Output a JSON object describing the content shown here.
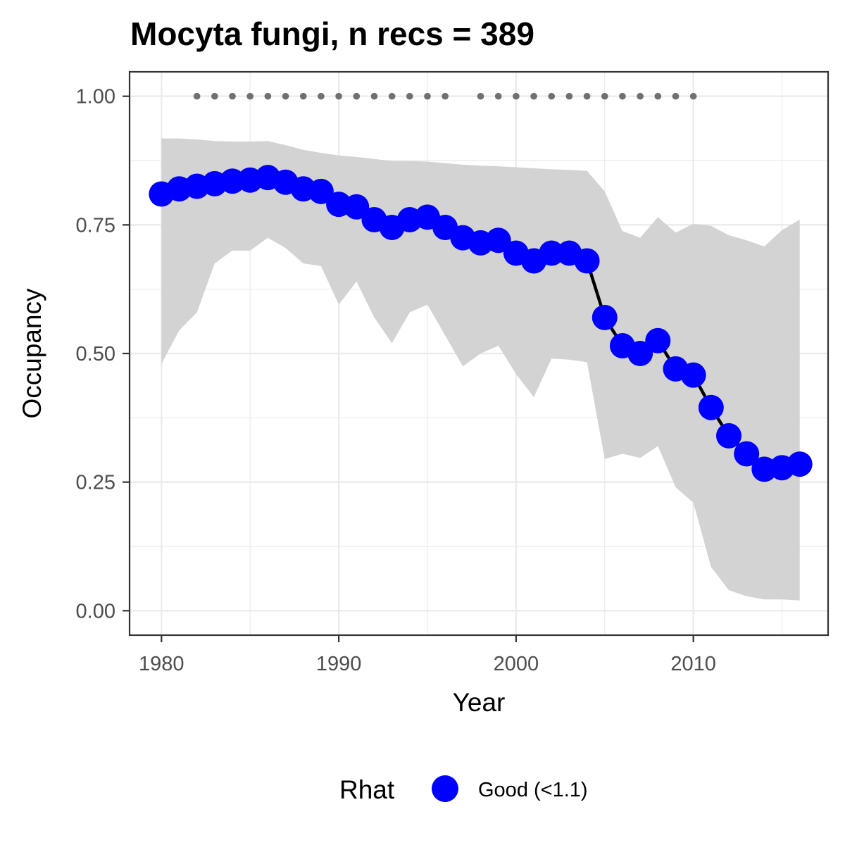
{
  "chart_data": {
    "type": "line",
    "title": "Mocyta fungi, n recs = 389",
    "xlabel": "Year",
    "ylabel": "Occupancy",
    "xlim": [
      1978.2,
      2017.6
    ],
    "ylim": [
      -0.0475,
      1.0475
    ],
    "x_ticks": [
      1980,
      1990,
      2000,
      2010
    ],
    "x_tick_labels": [
      "1980",
      "1990",
      "2000",
      "2010"
    ],
    "y_ticks": [
      0,
      0.25,
      0.5,
      0.75,
      1
    ],
    "y_tick_labels": [
      "0.00",
      "0.25",
      "0.50",
      "0.75",
      "1.00"
    ],
    "grid": true,
    "legend_position": "bottom",
    "legend": {
      "title": "Rhat",
      "label": "Good (<1.1)"
    },
    "colors": {
      "points": "#0000ff",
      "line": "#000000",
      "ribbon": "#d3d3d3",
      "record_dots": "#707070",
      "grid": "#ebebeb",
      "panel_border": "#333333"
    },
    "series": [
      {
        "name": "Good (<1.1)",
        "x": [
          1980,
          1981,
          1982,
          1983,
          1984,
          1985,
          1986,
          1987,
          1988,
          1989,
          1990,
          1991,
          1992,
          1993,
          1994,
          1995,
          1996,
          1997,
          1998,
          1999,
          2000,
          2001,
          2002,
          2003,
          2004,
          2005,
          2006,
          2007,
          2008,
          2009,
          2010,
          2011,
          2012,
          2013,
          2014,
          2015,
          2016
        ],
        "y": [
          0.81,
          0.82,
          0.825,
          0.83,
          0.835,
          0.837,
          0.842,
          0.833,
          0.82,
          0.815,
          0.79,
          0.785,
          0.76,
          0.745,
          0.76,
          0.765,
          0.745,
          0.725,
          0.715,
          0.72,
          0.695,
          0.68,
          0.695,
          0.695,
          0.68,
          0.57,
          0.515,
          0.5,
          0.525,
          0.47,
          0.458,
          0.395,
          0.34,
          0.305,
          0.275,
          0.278,
          0.285
        ],
        "lower": [
          0.48,
          0.545,
          0.58,
          0.675,
          0.7,
          0.7,
          0.725,
          0.705,
          0.675,
          0.67,
          0.595,
          0.64,
          0.57,
          0.52,
          0.58,
          0.595,
          0.535,
          0.475,
          0.5,
          0.515,
          0.46,
          0.415,
          0.49,
          0.488,
          0.483,
          0.295,
          0.305,
          0.297,
          0.32,
          0.24,
          0.21,
          0.085,
          0.04,
          0.028,
          0.022,
          0.022,
          0.02
        ],
        "upper": [
          0.918,
          0.918,
          0.916,
          0.913,
          0.912,
          0.912,
          0.913,
          0.905,
          0.896,
          0.89,
          0.885,
          0.882,
          0.878,
          0.874,
          0.874,
          0.873,
          0.87,
          0.867,
          0.865,
          0.864,
          0.862,
          0.86,
          0.858,
          0.857,
          0.855,
          0.815,
          0.738,
          0.725,
          0.765,
          0.735,
          0.752,
          0.748,
          0.73,
          0.72,
          0.708,
          0.74,
          0.76
        ]
      }
    ],
    "record_years": [
      1982,
      1983,
      1984,
      1985,
      1986,
      1987,
      1988,
      1989,
      1990,
      1991,
      1992,
      1993,
      1994,
      1995,
      1996,
      1998,
      1999,
      2000,
      2001,
      2002,
      2003,
      2004,
      2005,
      2006,
      2007,
      2008,
      2009,
      2010
    ],
    "record_y": 1.0
  }
}
